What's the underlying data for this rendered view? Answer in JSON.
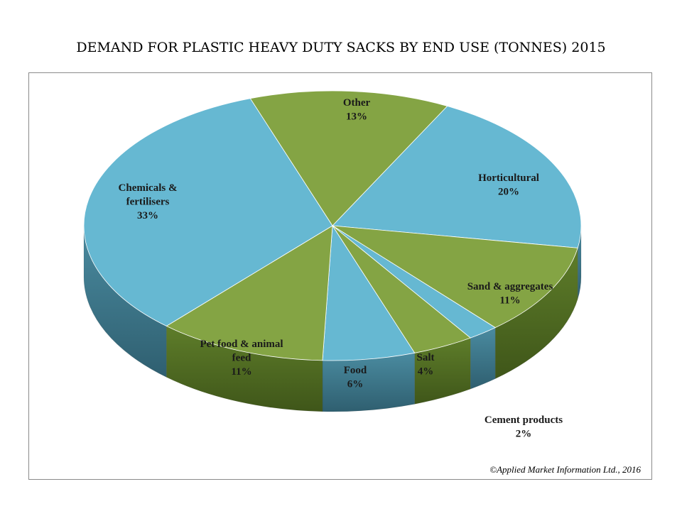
{
  "chart_data": {
    "type": "pie",
    "title": "DEMAND FOR PLASTIC HEAVY DUTY SACKS BY END USE (TONNES) 2015",
    "slices": [
      {
        "key": "horticultural",
        "label": [
          "Horticultural"
        ],
        "value_label": "20%",
        "value": 20,
        "color": "#66b8d2"
      },
      {
        "key": "sand",
        "label": [
          "Sand & aggregates"
        ],
        "value_label": "11%",
        "value": 11,
        "color": "#84a444"
      },
      {
        "key": "cement",
        "label": [
          "Cement products"
        ],
        "value_label": "2%",
        "value": 2,
        "color": "#66b8d2"
      },
      {
        "key": "salt",
        "label": [
          "Salt"
        ],
        "value_label": "4%",
        "value": 4,
        "color": "#84a444"
      },
      {
        "key": "food",
        "label": [
          "Food"
        ],
        "value_label": "6%",
        "value": 6,
        "color": "#66b8d2"
      },
      {
        "key": "petfood",
        "label": [
          "Pet food & animal",
          "feed"
        ],
        "value_label": "11%",
        "value": 11,
        "color": "#84a444"
      },
      {
        "key": "chemicals",
        "label": [
          "Chemicals &",
          "fertilisers"
        ],
        "value_label": "33%",
        "value": 33,
        "color": "#66b8d2"
      },
      {
        "key": "other",
        "label": [
          "Other"
        ],
        "value_label": "13%",
        "value": 13,
        "color": "#84a444"
      }
    ],
    "legend": "none",
    "style": "3d",
    "credit": "©Applied Market Information Ltd., 2016"
  }
}
